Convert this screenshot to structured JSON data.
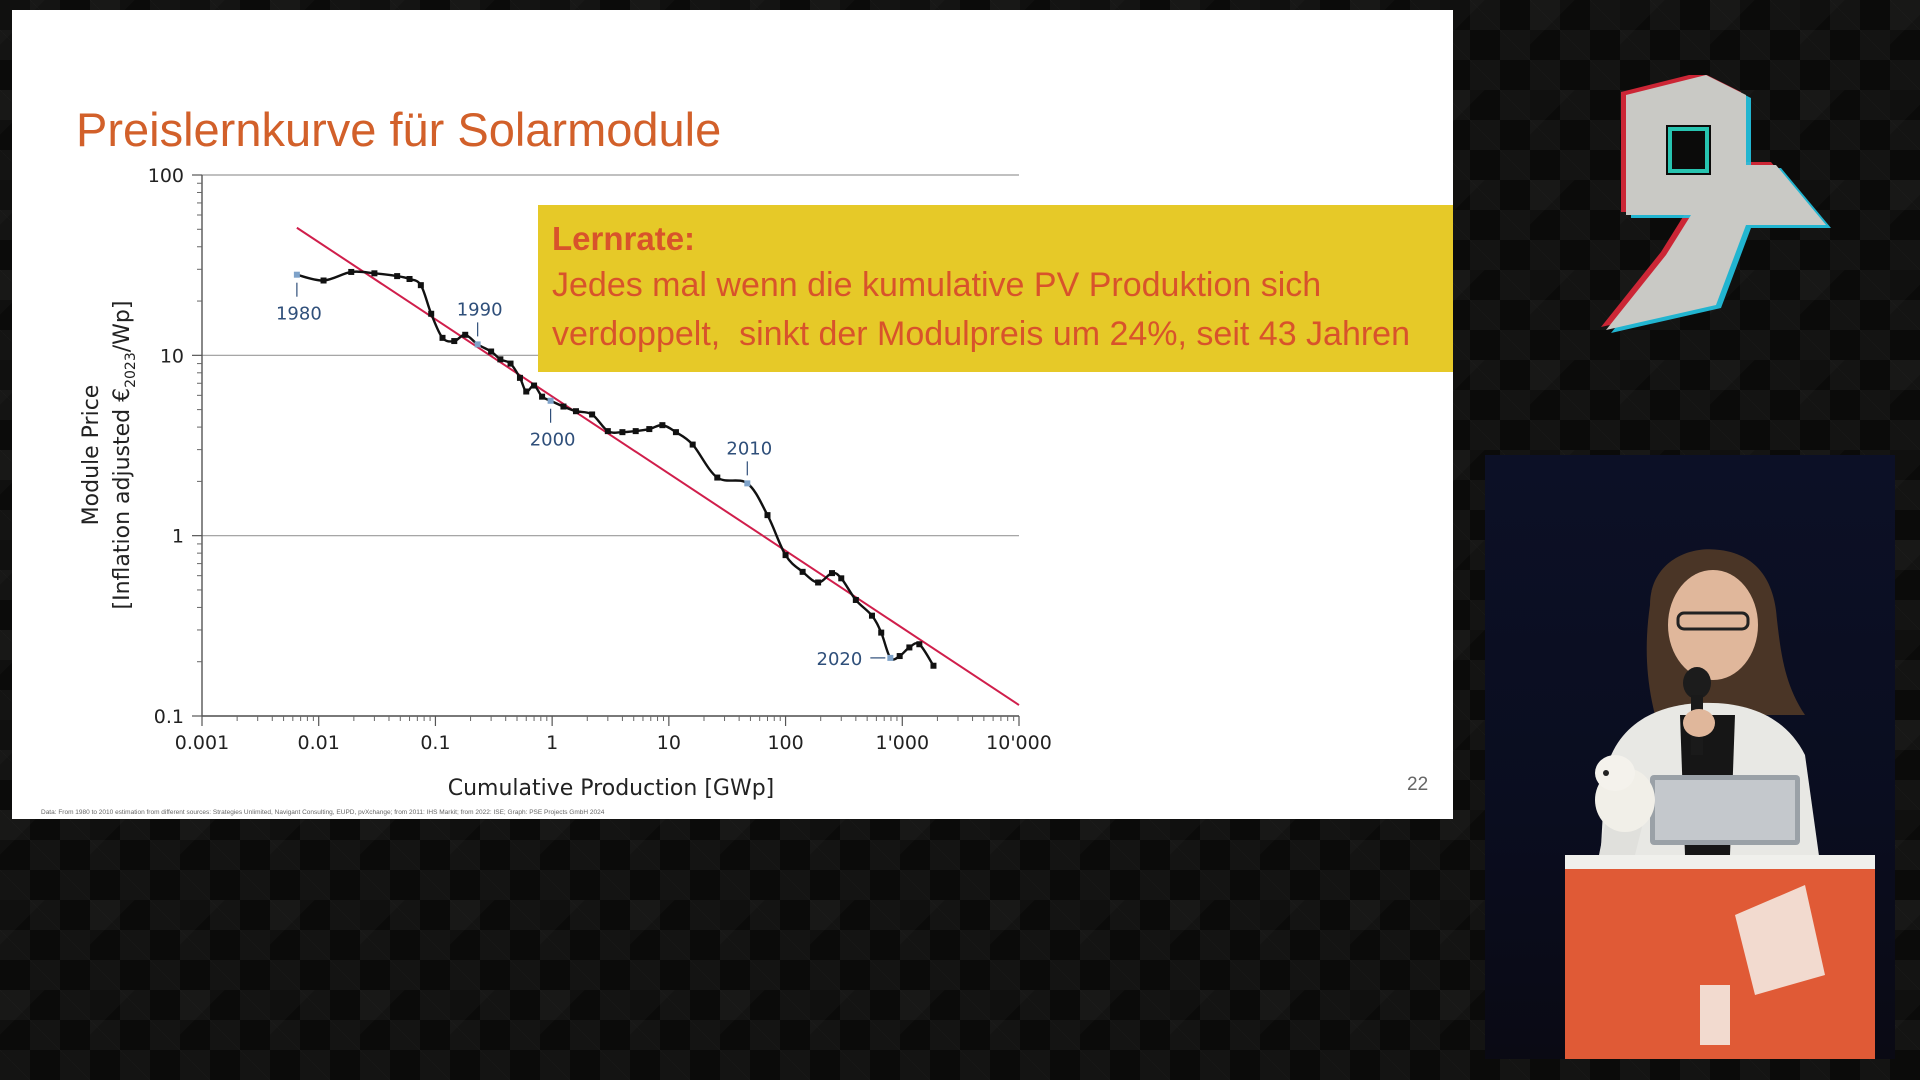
{
  "slide": {
    "title": "Preislernkurve für Solarmodule",
    "page_number": "22",
    "footnote": "Data: From 1980 to 2010 estimation from different sources: Strategies Unlimited, Navigant Consulting, EUPD, pvXchange; from 2011: IHS Markit; from 2022: ISE; Graph: PSE Projects GmbH 2024",
    "callout": {
      "heading": "Lernrate:",
      "text": "Jedes mal wenn die kumulative PV Produktion sich\nverdoppelt,  sinkt der Modulpreis um 24%, seit 43 Jahren"
    }
  },
  "colors": {
    "title": "#d2602a",
    "callout_bg": "#e6c928",
    "callout_text": "#d8532b",
    "trend_line": "#d01e4b",
    "data_line": "#111111",
    "year_label": "#2f4f7a",
    "marker_highlight": "#7ea2c9"
  },
  "chart_data": {
    "type": "line",
    "xscale": "log",
    "yscale": "log",
    "xlim": [
      0.001,
      10000
    ],
    "ylim": [
      0.1,
      100
    ],
    "xlabel": "Cumulative Production [GWp]",
    "ylabel_line1": "Module Price",
    "ylabel_line2_pre": "[Inflation adjusted €",
    "ylabel_sub": "2023",
    "ylabel_line2_post": "/Wp]",
    "xticks": [
      0.001,
      0.01,
      0.1,
      1,
      10,
      100,
      1000,
      10000
    ],
    "xtick_labels": [
      "0.001",
      "0.01",
      "0.1",
      "1",
      "10",
      "100",
      "1'000",
      "10'000"
    ],
    "yticks": [
      0.1,
      1,
      10,
      100
    ],
    "ytick_labels": [
      "0.1",
      "1",
      "10",
      "100"
    ],
    "grid": "horizontal",
    "series": [
      {
        "x": [
          0.0065,
          0.011,
          0.019,
          0.03,
          0.047,
          0.06,
          0.075,
          0.092,
          0.115,
          0.145,
          0.18,
          0.23,
          0.3,
          0.36,
          0.44,
          0.53,
          0.6,
          0.7,
          0.82,
          0.97,
          1.25,
          1.6,
          2.2,
          3.0,
          4.0,
          5.2,
          6.8,
          8.8,
          11.5,
          16,
          26,
          47,
          70,
          100,
          140,
          190,
          250,
          300,
          400,
          550,
          660,
          790,
          950,
          1150,
          1400,
          1850
        ],
        "y": [
          28,
          26,
          29,
          28.5,
          27.5,
          26.5,
          24.5,
          17,
          12.5,
          12,
          13,
          11.5,
          10.5,
          9.5,
          9,
          7.5,
          6.3,
          6.8,
          5.9,
          5.6,
          5.2,
          4.9,
          4.7,
          3.8,
          3.75,
          3.8,
          3.9,
          4.1,
          3.75,
          3.2,
          2.1,
          1.95,
          1.3,
          0.78,
          0.63,
          0.55,
          0.62,
          0.58,
          0.44,
          0.36,
          0.29,
          0.21,
          0.215,
          0.24,
          0.25,
          0.19
        ]
      }
    ],
    "trendline": {
      "x": [
        0.0065,
        10000
      ],
      "y": [
        51,
        0.115
      ]
    },
    "year_annotations": [
      {
        "label": "1980",
        "x": 0.0065,
        "y": 28
      },
      {
        "label": "1990",
        "x": 0.23,
        "y": 11.5
      },
      {
        "label": "2000",
        "x": 0.97,
        "y": 5.6
      },
      {
        "label": "2010",
        "x": 47,
        "y": 1.95
      },
      {
        "label": "2020",
        "x": 790,
        "y": 0.21
      }
    ]
  },
  "speaker_view": {
    "label": "speaker"
  }
}
